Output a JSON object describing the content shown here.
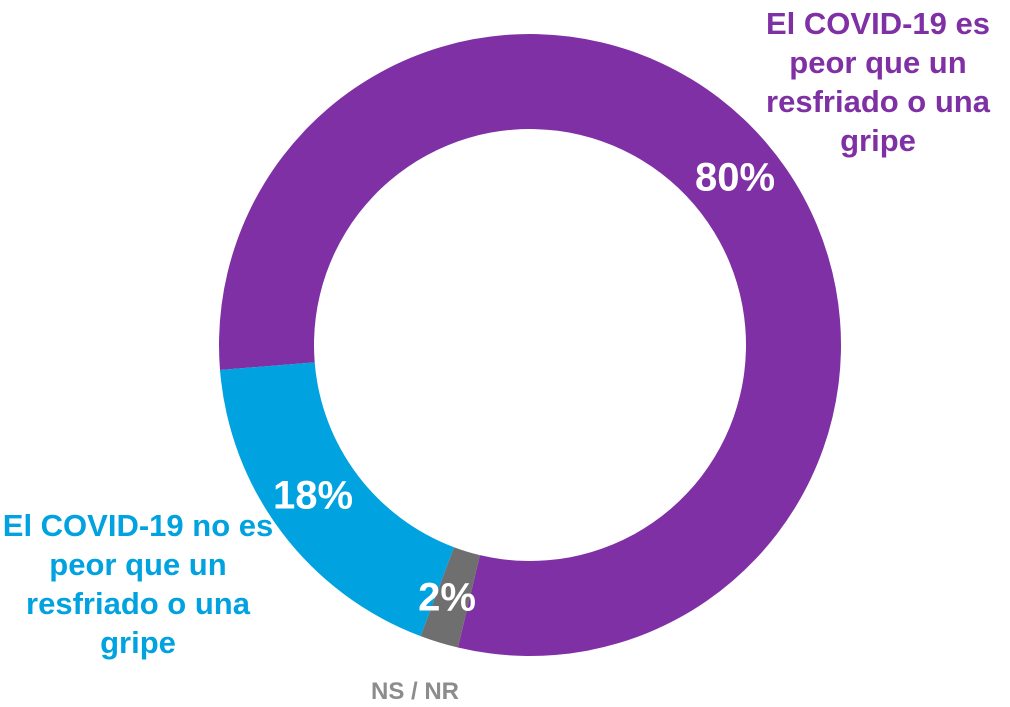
{
  "chart_data": {
    "type": "donut",
    "categories": [
      "El COVID-19 es peor que un resfriado o una gripe",
      "NS / NR",
      "El COVID-19 no es peor que un resfriado o una gripe"
    ],
    "values": [
      80,
      2,
      18
    ],
    "value_labels": [
      "80%",
      "2%",
      "18%"
    ],
    "colors": [
      "#7f30a4",
      "#6f6f6f",
      "#00a2df"
    ],
    "label_colors": [
      "#7f30a4",
      "#8c8c8c",
      "#00a2df"
    ]
  }
}
